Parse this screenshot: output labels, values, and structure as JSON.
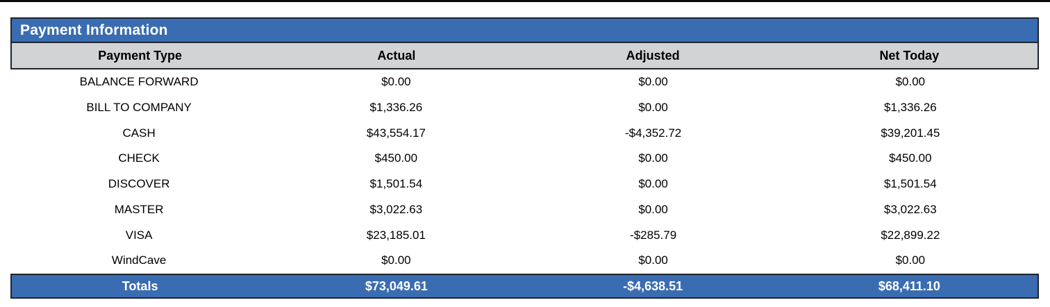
{
  "colors": {
    "accent_blue": "#3A6CB1",
    "header_gray": "#D1D3D4",
    "border_dark": "#1D2430",
    "top_line_black": "#0A0A0A"
  },
  "table": {
    "title": "Payment Information",
    "columns": [
      "Payment Type",
      "Actual",
      "Adjusted",
      "Net Today"
    ],
    "rows": [
      {
        "type": "BALANCE FORWARD",
        "actual": "$0.00",
        "adjusted": "$0.00",
        "net": "$0.00"
      },
      {
        "type": "BILL TO COMPANY",
        "actual": "$1,336.26",
        "adjusted": "$0.00",
        "net": "$1,336.26"
      },
      {
        "type": "CASH",
        "actual": "$43,554.17",
        "adjusted": "-$4,352.72",
        "net": "$39,201.45"
      },
      {
        "type": "CHECK",
        "actual": "$450.00",
        "adjusted": "$0.00",
        "net": "$450.00"
      },
      {
        "type": "DISCOVER",
        "actual": "$1,501.54",
        "adjusted": "$0.00",
        "net": "$1,501.54"
      },
      {
        "type": "MASTER",
        "actual": "$3,022.63",
        "adjusted": "$0.00",
        "net": "$3,022.63"
      },
      {
        "type": "VISA",
        "actual": "$23,185.01",
        "adjusted": "-$285.79",
        "net": "$22,899.22"
      },
      {
        "type": "WindCave",
        "actual": "$0.00",
        "adjusted": "$0.00",
        "net": "$0.00"
      }
    ],
    "totals": {
      "label": "Totals",
      "actual": "$73,049.61",
      "adjusted": "-$4,638.51",
      "net": "$68,411.10"
    }
  }
}
